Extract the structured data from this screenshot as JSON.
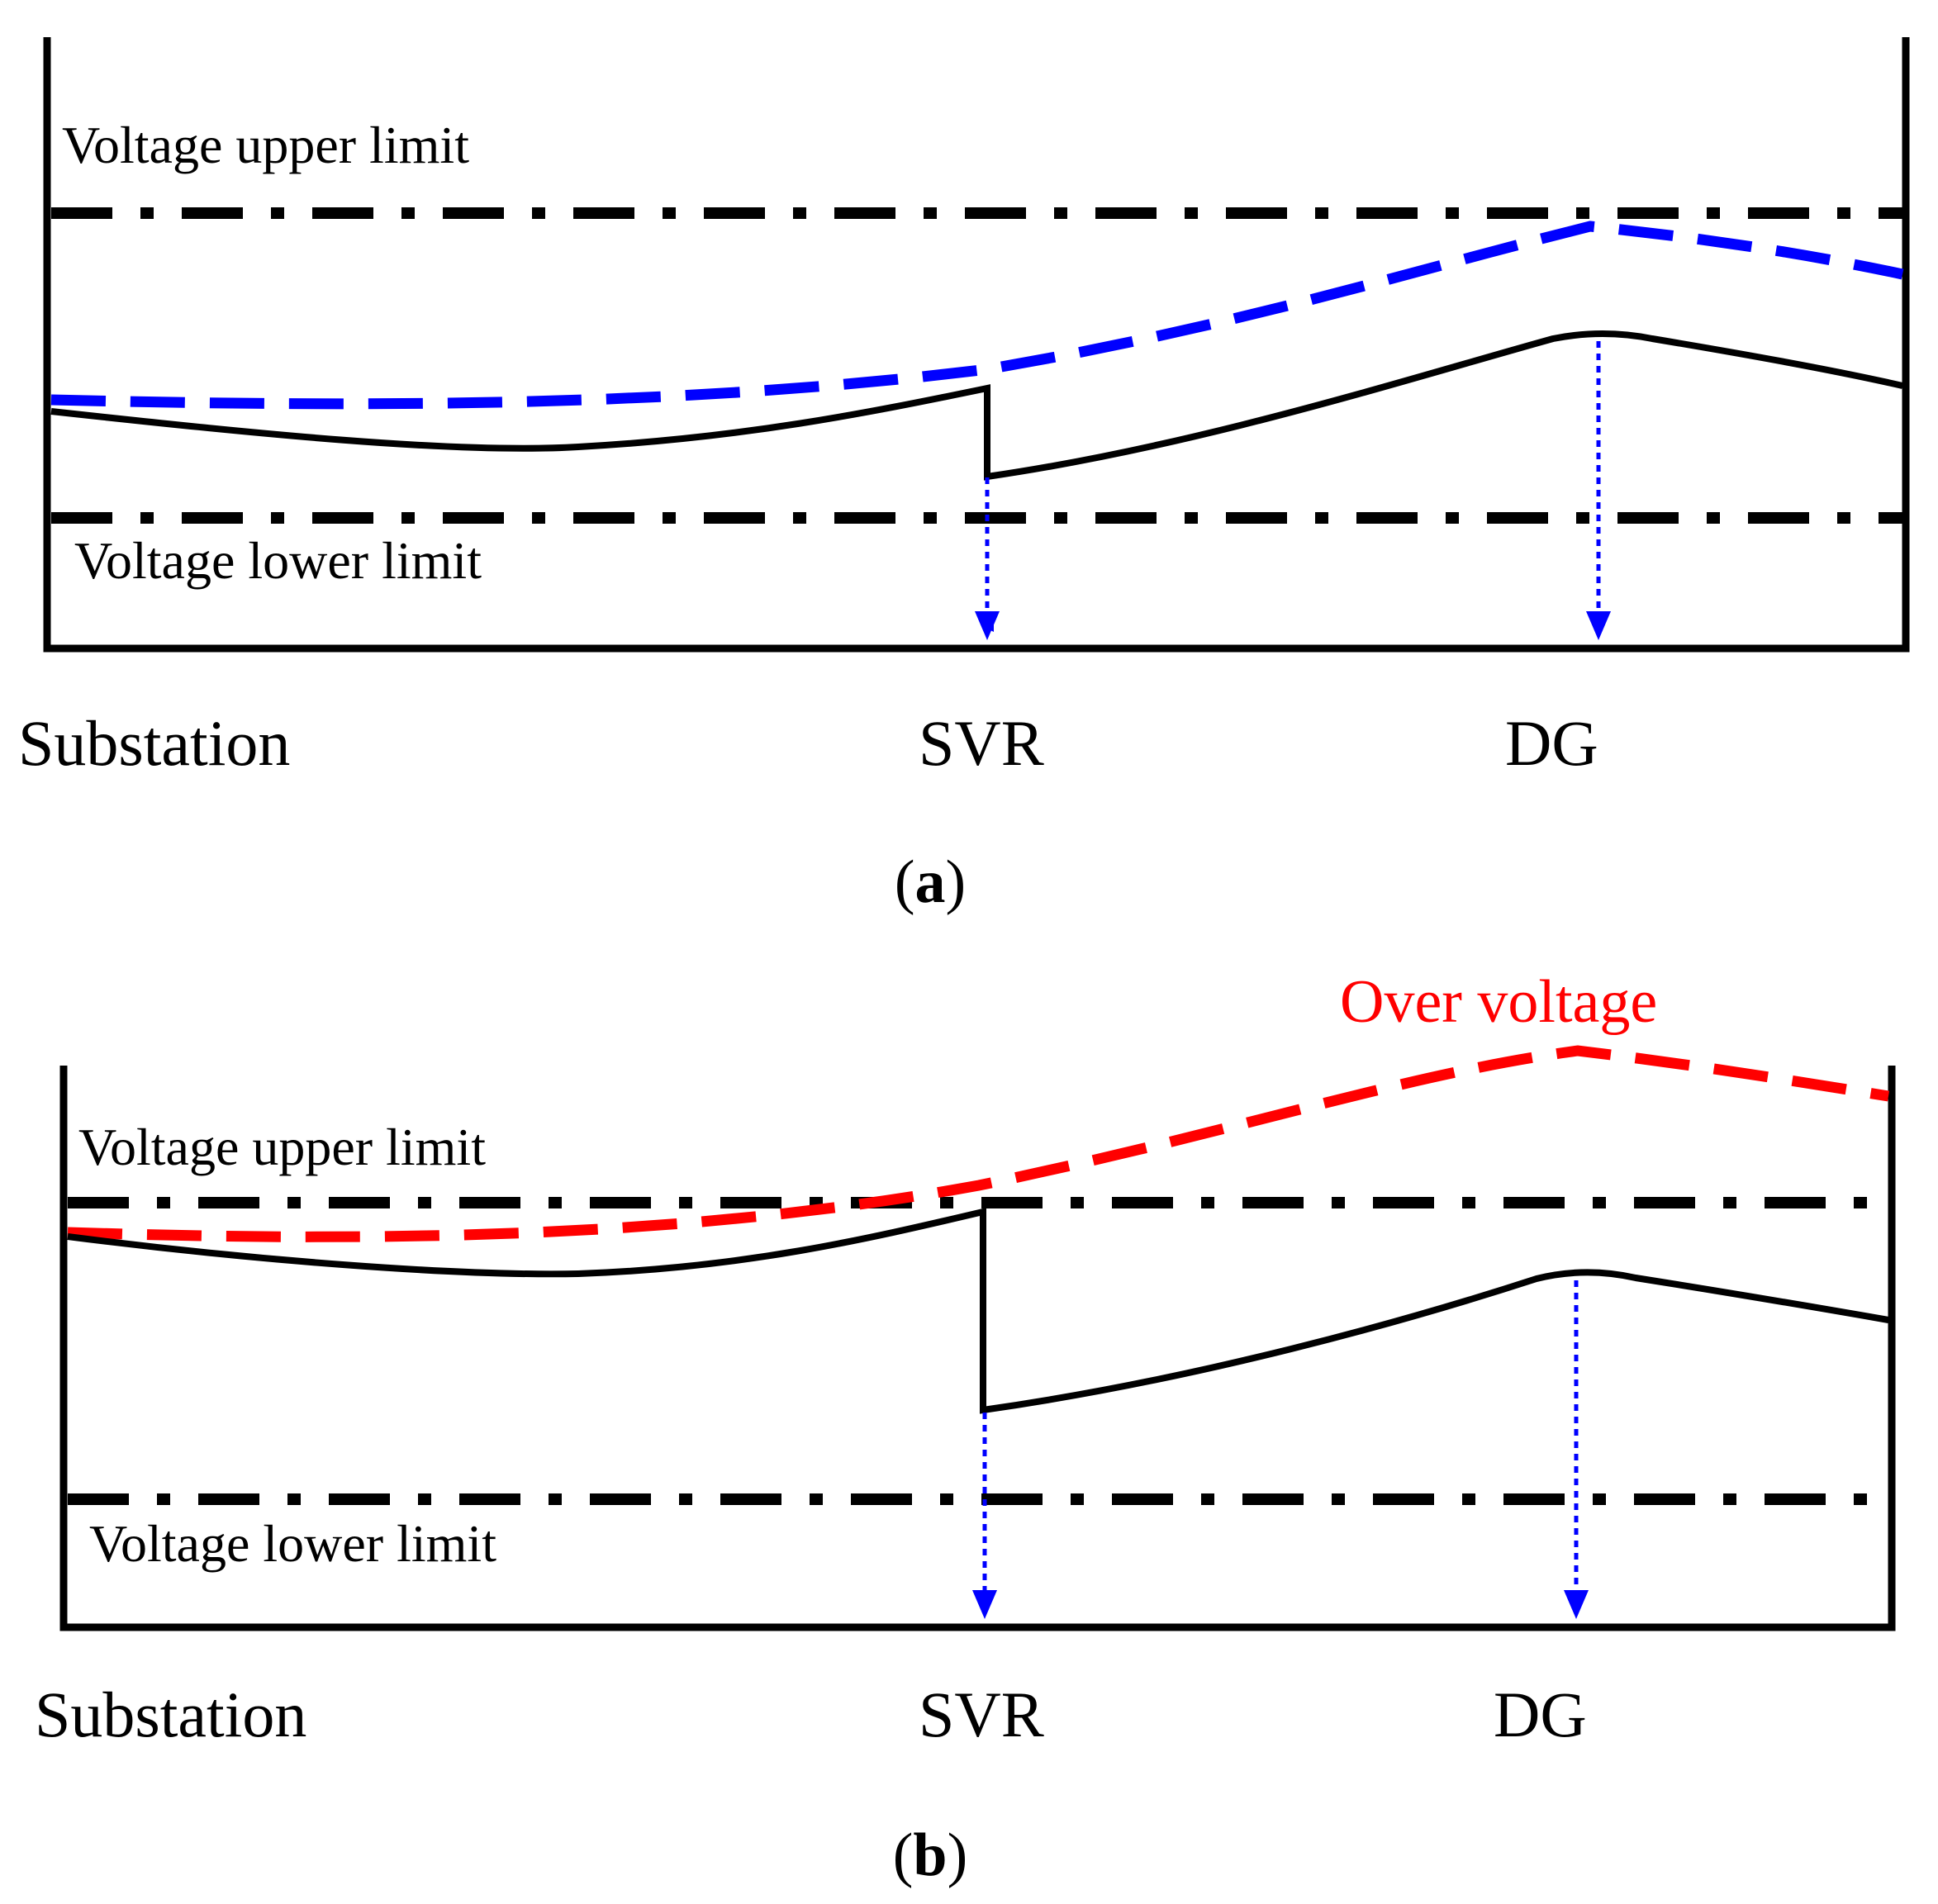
{
  "colors": {
    "black": "#000000",
    "blue": "#0000ff",
    "red": "#ff0000",
    "background": "#ffffff"
  },
  "panel_a": {
    "caption_open": "(",
    "caption_letter": "a",
    "caption_close": ")",
    "upper_limit_label": "Voltage upper limit",
    "lower_limit_label": "Voltage lower limit",
    "x_labels": {
      "substation": "Substation",
      "svr": "SVR",
      "dg": "DG"
    }
  },
  "panel_b": {
    "caption_open": "(",
    "caption_letter": "b",
    "caption_close": ")",
    "upper_limit_label": "Voltage upper limit",
    "lower_limit_label": "Voltage lower limit",
    "over_voltage_label": "Over voltage",
    "x_labels": {
      "substation": "Substation",
      "svr": "SVR",
      "dg": "DG"
    }
  }
}
